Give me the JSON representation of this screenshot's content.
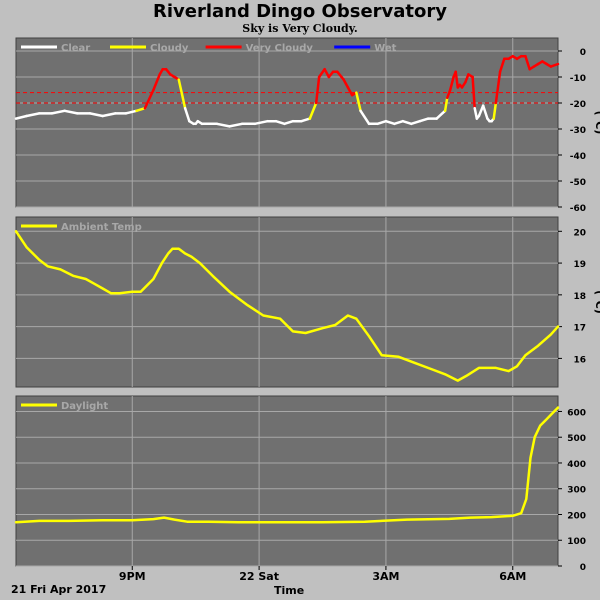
{
  "header": {
    "title": "Riverland Dingo Observatory",
    "subtitle": "Sky is Very Cloudy."
  },
  "footer": {
    "date_label": "21 Fri Apr 2017",
    "xlabel": "Time"
  },
  "colors": {
    "background": "#c0c0c0",
    "plot_bg": "#707070",
    "grid": "#a8a8a8",
    "clear": "#ffffff",
    "cloudy": "#ffff00",
    "very_cloudy": "#ff0000",
    "wet": "#0000ff",
    "threshold": "#ff0000",
    "series": "#ffff00"
  },
  "chart_data": [
    {
      "type": "line",
      "name": "sky",
      "x_ticks": [
        "9PM",
        "22 Sat",
        "3AM",
        "6AM"
      ],
      "x_tick_hours": [
        21,
        24,
        27,
        30
      ],
      "xlim": [
        18.25,
        31.07
      ],
      "ylim": [
        -60,
        5
      ],
      "yticks": [
        0,
        -10,
        -20,
        -30,
        -40,
        -50,
        -60
      ],
      "ylabel": "(°C)",
      "threshold_lines": [
        -16,
        -20
      ],
      "legend": [
        {
          "label": "Clear",
          "color": "#ffffff"
        },
        {
          "label": "Cloudy",
          "color": "#ffff00"
        },
        {
          "label": "Very Cloudy",
          "color": "#ff0000"
        },
        {
          "label": "Wet",
          "color": "#0000ff"
        }
      ],
      "series": [
        {
          "x": [
            18.25,
            18.5,
            18.8,
            19.1,
            19.4,
            19.7,
            20.0,
            20.3,
            20.6,
            20.85,
            21.1,
            21.3,
            21.5,
            21.65,
            21.72,
            21.8,
            21.9,
            22.0,
            22.1,
            22.25,
            22.35,
            22.45,
            22.5,
            22.55,
            22.65,
            22.8,
            23.0,
            23.3,
            23.6,
            23.9,
            24.2,
            24.4,
            24.6,
            24.8,
            25.0,
            25.2,
            25.35,
            25.42,
            25.55,
            25.65,
            25.75,
            25.85,
            26.0,
            26.1,
            26.2,
            26.3,
            26.4,
            26.6,
            26.8,
            27.0,
            27.2,
            27.4,
            27.6,
            27.8,
            28.0,
            28.2,
            28.4,
            28.45,
            28.52,
            28.6,
            28.65,
            28.7,
            28.75,
            28.8,
            28.88,
            28.95,
            29.05,
            29.1,
            29.15,
            29.2,
            29.3,
            29.4,
            29.45,
            29.5,
            29.55,
            29.6,
            29.7,
            29.8,
            29.9,
            30.0,
            30.1,
            30.2,
            30.3,
            30.4,
            30.5,
            30.6,
            30.7,
            30.8,
            30.9,
            31.07
          ],
          "y": [
            -26,
            -25,
            -24,
            -24,
            -23,
            -24,
            -24,
            -25,
            -24,
            -24,
            -23,
            -22,
            -15,
            -9,
            -7,
            -7,
            -9,
            -10,
            -11,
            -22,
            -27,
            -28,
            -28,
            -27,
            -28,
            -28,
            -28,
            -29,
            -28,
            -28,
            -27,
            -27,
            -28,
            -27,
            -27,
            -26,
            -20,
            -10,
            -7,
            -10,
            -8,
            -8,
            -11,
            -14,
            -17,
            -16,
            -23,
            -28,
            -28,
            -27,
            -28,
            -27,
            -28,
            -27,
            -26,
            -26,
            -23,
            -18,
            -15,
            -10,
            -8,
            -14,
            -13,
            -14,
            -12,
            -9,
            -10,
            -22,
            -26,
            -25,
            -21,
            -26,
            -27,
            -27,
            -26,
            -20,
            -8,
            -3,
            -3,
            -2,
            -3,
            -2,
            -2,
            -7,
            -6,
            -5,
            -4,
            -5,
            -6,
            -5
          ],
          "state": [
            "clear",
            "clear",
            "clear",
            "clear",
            "clear",
            "clear",
            "clear",
            "clear",
            "clear",
            "clear",
            "clear",
            "cloudy",
            "very_cloudy",
            "very_cloudy",
            "very_cloudy",
            "very_cloudy",
            "very_cloudy",
            "very_cloudy",
            "very_cloudy",
            "cloudy",
            "clear",
            "clear",
            "clear",
            "clear",
            "clear",
            "clear",
            "clear",
            "clear",
            "clear",
            "clear",
            "clear",
            "clear",
            "clear",
            "clear",
            "clear",
            "clear",
            "cloudy",
            "very_cloudy",
            "very_cloudy",
            "very_cloudy",
            "very_cloudy",
            "very_cloudy",
            "very_cloudy",
            "very_cloudy",
            "very_cloudy",
            "very_cloudy",
            "cloudy",
            "clear",
            "clear",
            "clear",
            "clear",
            "clear",
            "clear",
            "clear",
            "clear",
            "clear",
            "clear",
            "cloudy",
            "very_cloudy",
            "very_cloudy",
            "very_cloudy",
            "very_cloudy",
            "very_cloudy",
            "very_cloudy",
            "very_cloudy",
            "very_cloudy",
            "very_cloudy",
            "very_cloudy",
            "clear",
            "clear",
            "clear",
            "clear",
            "clear",
            "clear",
            "clear",
            "cloudy",
            "very_cloudy",
            "very_cloudy",
            "very_cloudy",
            "very_cloudy",
            "very_cloudy",
            "very_cloudy",
            "very_cloudy",
            "very_cloudy",
            "very_cloudy",
            "very_cloudy",
            "very_cloudy",
            "very_cloudy",
            "very_cloudy",
            "very_cloudy"
          ]
        }
      ]
    },
    {
      "type": "line",
      "name": "ambient",
      "ylim": [
        15.1,
        20.45
      ],
      "yticks": [
        20,
        19,
        18,
        17,
        16
      ],
      "ylabel": "(°C)",
      "legend": [
        {
          "label": "Ambient Temp",
          "color": "#ffff00"
        }
      ],
      "series": [
        {
          "name": "Ambient Temp",
          "x": [
            18.25,
            18.5,
            18.8,
            19.0,
            19.3,
            19.6,
            19.9,
            20.1,
            20.3,
            20.5,
            20.7,
            21.0,
            21.2,
            21.5,
            21.7,
            21.85,
            21.95,
            22.1,
            22.25,
            22.4,
            22.6,
            22.9,
            23.3,
            23.7,
            24.1,
            24.5,
            24.8,
            25.1,
            25.5,
            25.8,
            26.1,
            26.3,
            26.6,
            26.9,
            27.3,
            27.7,
            28.1,
            28.4,
            28.7,
            28.9,
            29.2,
            29.6,
            29.9,
            30.1,
            30.3,
            30.6,
            30.9,
            31.07
          ],
          "y": [
            20.0,
            19.5,
            19.1,
            18.9,
            18.8,
            18.6,
            18.5,
            18.35,
            18.2,
            18.05,
            18.05,
            18.1,
            18.1,
            18.5,
            19.0,
            19.3,
            19.45,
            19.45,
            19.3,
            19.2,
            19.0,
            18.6,
            18.1,
            17.7,
            17.35,
            17.25,
            16.85,
            16.8,
            16.95,
            17.05,
            17.35,
            17.25,
            16.7,
            16.1,
            16.05,
            15.85,
            15.65,
            15.5,
            15.3,
            15.45,
            15.7,
            15.7,
            15.6,
            15.75,
            16.1,
            16.4,
            16.75,
            17.0
          ]
        }
      ]
    },
    {
      "type": "line",
      "name": "daylight",
      "ylim": [
        0,
        660
      ],
      "yticks": [
        600,
        500,
        400,
        300,
        200,
        100,
        0
      ],
      "legend": [
        {
          "label": "Daylight",
          "color": "#ffff00"
        }
      ],
      "series": [
        {
          "name": "Daylight",
          "x": [
            18.25,
            18.8,
            19.5,
            20.3,
            21.0,
            21.5,
            21.75,
            22.0,
            22.3,
            22.8,
            23.5,
            24.5,
            25.5,
            26.5,
            27.5,
            28.5,
            29.0,
            29.5,
            30.0,
            30.2,
            30.32,
            30.42,
            30.52,
            30.65,
            30.8,
            30.95,
            31.07
          ],
          "y": [
            170,
            175,
            175,
            178,
            178,
            182,
            188,
            180,
            172,
            172,
            170,
            170,
            170,
            172,
            180,
            183,
            188,
            190,
            195,
            205,
            260,
            420,
            500,
            545,
            570,
            595,
            615
          ]
        }
      ]
    }
  ]
}
